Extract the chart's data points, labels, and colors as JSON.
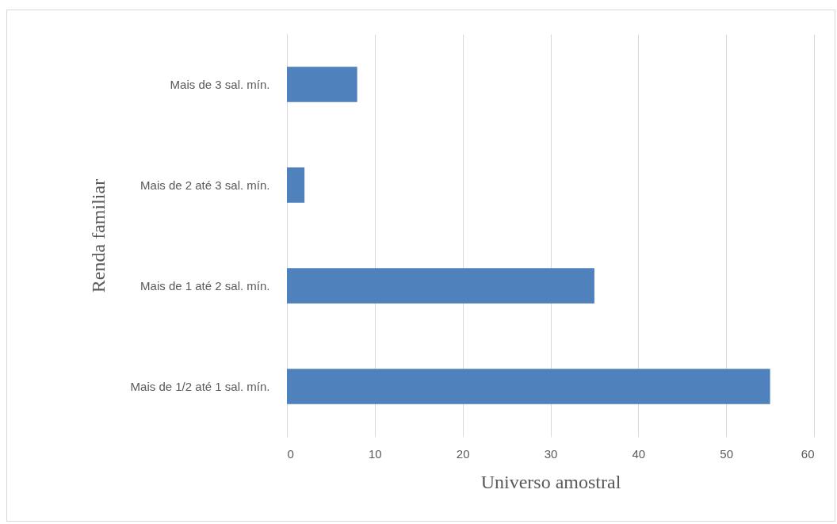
{
  "chart_data": {
    "type": "bar",
    "orientation": "horizontal",
    "xlabel": "Universo amostral",
    "ylabel": "Renda familiar",
    "categories": [
      "Mais de 3 sal. mín.",
      "Mais de 2 até 3 sal. mín.",
      "Mais de 1 até 2 sal. mín.",
      "Mais de 1/2 até 1 sal. mín."
    ],
    "values": [
      8,
      2,
      35,
      55
    ],
    "color": "#4f81bd",
    "xlim": [
      0,
      60
    ],
    "xticks": [
      0,
      10,
      20,
      30,
      40,
      50,
      60
    ],
    "grid": "x"
  }
}
